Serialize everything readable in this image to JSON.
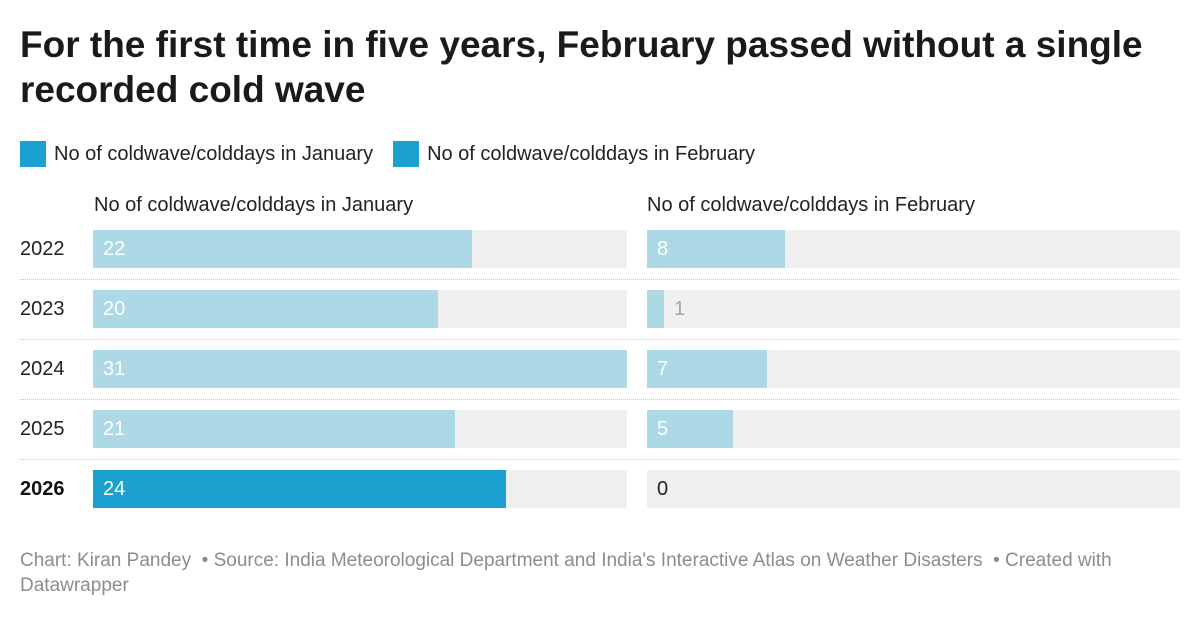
{
  "title": "For the first time in five years, February passed without a single recorded cold wave",
  "legend": [
    {
      "label": "No of coldwave/colddays in January",
      "color": "#1aa1cf"
    },
    {
      "label": "No of coldwave/colddays in February",
      "color": "#1aa1cf"
    }
  ],
  "footer": {
    "chart_credit": "Chart: Kiran Pandey",
    "source": "• Source: India Meteorological Department and India's Interactive Atlas on Weather Disasters",
    "created": "• Created with Datawrapper"
  },
  "colors": {
    "highlight": "#1aa1cf",
    "muted": "#add8e6",
    "track": "#f0f0f0"
  },
  "chart_data": {
    "type": "bar",
    "orientation": "horizontal",
    "categories": [
      "2022",
      "2023",
      "2024",
      "2025",
      "2026"
    ],
    "highlighted_category": "2026",
    "series": [
      {
        "name": "No of coldwave/colddays in January",
        "values": [
          22,
          20,
          31,
          21,
          24
        ],
        "xlim": [
          0,
          31
        ]
      },
      {
        "name": "No of coldwave/colddays in February",
        "values": [
          8,
          1,
          7,
          5,
          0
        ],
        "xlim": [
          0,
          31
        ]
      }
    ],
    "title": "For the first time in five years, February passed without a single recorded cold wave",
    "grid": false,
    "legend_position": "top-left"
  }
}
